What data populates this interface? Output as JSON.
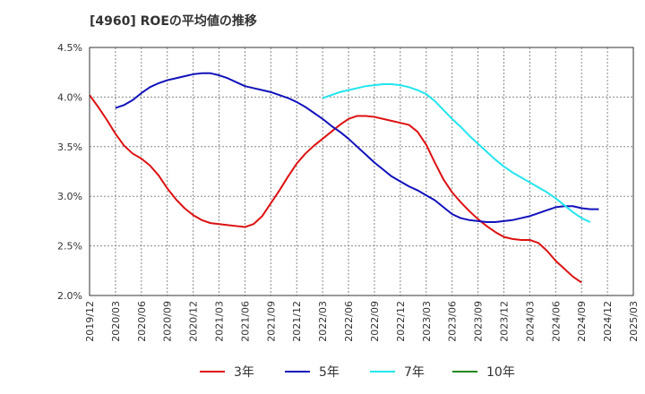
{
  "chart_data": {
    "type": "line",
    "title": "[4960]  ROEの平均値の推移",
    "ylim": [
      2.0,
      4.5
    ],
    "y_ticks": [
      "2.0%",
      "2.5%",
      "3.0%",
      "3.5%",
      "4.0%",
      "4.5%"
    ],
    "x_ticks": [
      "2019/12",
      "2020/03",
      "2020/06",
      "2020/09",
      "2020/12",
      "2021/03",
      "2021/06",
      "2021/09",
      "2021/12",
      "2022/03",
      "2022/06",
      "2022/09",
      "2022/12",
      "2023/03",
      "2023/06",
      "2023/09",
      "2023/12",
      "2024/03",
      "2024/06",
      "2024/09",
      "2024/12",
      "2025/03"
    ],
    "x_start": "2019/12",
    "x_end": "2025/03",
    "grid": true,
    "legend_position": "bottom",
    "series": [
      {
        "name": "3年",
        "color": "#dd1111",
        "start": "2019/12",
        "values": [
          4.02,
          3.9,
          3.77,
          3.63,
          3.51,
          3.43,
          3.38,
          3.31,
          3.21,
          3.08,
          2.97,
          2.88,
          2.81,
          2.76,
          2.73,
          2.72,
          2.71,
          2.7,
          2.69,
          2.72,
          2.8,
          2.93,
          3.06,
          3.2,
          3.33,
          3.43,
          3.51,
          3.58,
          3.65,
          3.72,
          3.78,
          3.81,
          3.81,
          3.8,
          3.78,
          3.76,
          3.74,
          3.72,
          3.65,
          3.52,
          3.34,
          3.17,
          3.04,
          2.94,
          2.85,
          2.77,
          2.7,
          2.64,
          2.59,
          2.57,
          2.56,
          2.56,
          2.53,
          2.45,
          2.35,
          2.27,
          2.19,
          2.13
        ]
      },
      {
        "name": "5年",
        "color": "#1111bb",
        "start": "2020/03",
        "values": [
          3.89,
          3.92,
          3.97,
          4.04,
          4.1,
          4.14,
          4.17,
          4.19,
          4.21,
          4.23,
          4.24,
          4.24,
          4.22,
          4.19,
          4.15,
          4.11,
          4.09,
          4.07,
          4.05,
          4.02,
          3.99,
          3.95,
          3.9,
          3.84,
          3.78,
          3.71,
          3.65,
          3.58,
          3.5,
          3.42,
          3.34,
          3.27,
          3.2,
          3.15,
          3.1,
          3.06,
          3.01,
          2.96,
          2.89,
          2.82,
          2.78,
          2.76,
          2.75,
          2.74,
          2.74,
          2.75,
          2.76,
          2.78,
          2.8,
          2.83,
          2.86,
          2.89,
          2.9,
          2.9,
          2.88,
          2.87,
          2.87
        ]
      },
      {
        "name": "7年",
        "color": "#22e5ee",
        "start": "2022/03",
        "values": [
          3.99,
          4.02,
          4.05,
          4.07,
          4.09,
          4.11,
          4.12,
          4.13,
          4.13,
          4.12,
          4.1,
          4.07,
          4.03,
          3.96,
          3.87,
          3.78,
          3.7,
          3.61,
          3.53,
          3.45,
          3.37,
          3.3,
          3.24,
          3.19,
          3.14,
          3.09,
          3.04,
          2.98,
          2.91,
          2.84,
          2.78,
          2.74
        ]
      },
      {
        "name": "10年",
        "color": "#22881f",
        "start": "2024/12",
        "values": []
      }
    ]
  }
}
